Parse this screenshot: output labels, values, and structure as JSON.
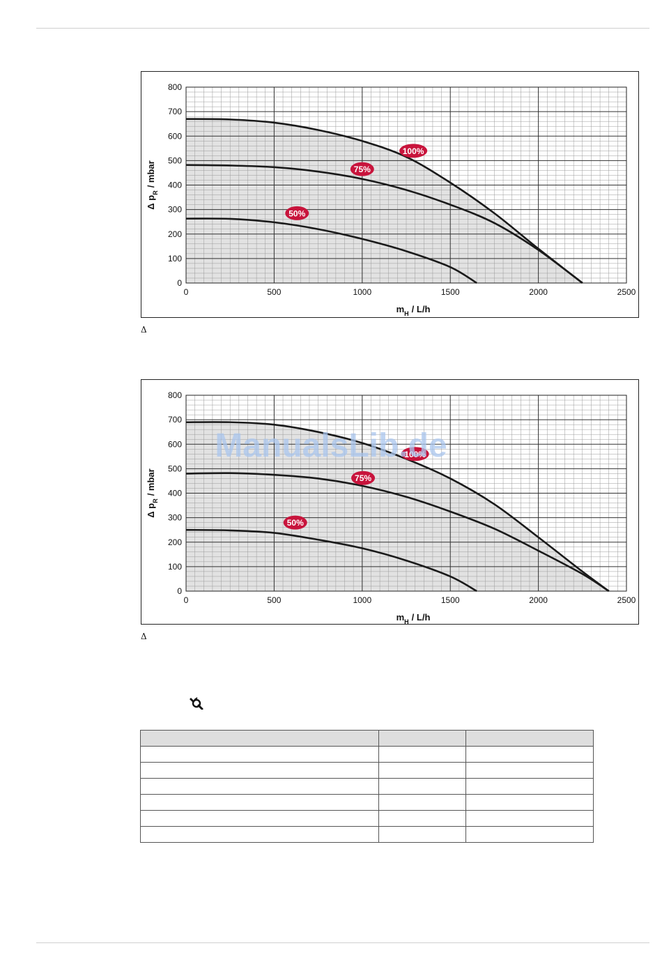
{
  "charts": [
    {
      "type": "line",
      "ylabel_main": "Δ p",
      "ylabel_sub": "R",
      "ylabel_unit": "/  mbar",
      "xlabel_main": "m",
      "xlabel_sub": "H",
      "xlabel_unit": "/  L/h",
      "xlim": [
        0,
        2500
      ],
      "ylim": [
        0,
        800
      ],
      "x_ticks": [
        0,
        500,
        1000,
        1500,
        2000,
        2500
      ],
      "y_ticks": [
        0,
        100,
        200,
        300,
        400,
        500,
        600,
        700,
        800
      ],
      "series": [
        {
          "name": "100%",
          "label_at": [
            1290,
            540
          ],
          "points": [
            [
              0,
              670
            ],
            [
              250,
              668
            ],
            [
              500,
              655
            ],
            [
              750,
              625
            ],
            [
              1000,
              580
            ],
            [
              1250,
              515
            ],
            [
              1500,
              410
            ],
            [
              1750,
              285
            ],
            [
              2000,
              140
            ],
            [
              2250,
              0
            ]
          ]
        },
        {
          "name": "75%",
          "label_at": [
            1000,
            465
          ],
          "points": [
            [
              0,
              482
            ],
            [
              250,
              480
            ],
            [
              500,
              473
            ],
            [
              750,
              455
            ],
            [
              1000,
              425
            ],
            [
              1250,
              380
            ],
            [
              1500,
              320
            ],
            [
              1750,
              245
            ],
            [
              2000,
              135
            ],
            [
              2250,
              0
            ]
          ]
        },
        {
          "name": "50%",
          "label_at": [
            630,
            285
          ],
          "points": [
            [
              0,
              263
            ],
            [
              250,
              262
            ],
            [
              500,
              248
            ],
            [
              750,
              220
            ],
            [
              1000,
              180
            ],
            [
              1250,
              130
            ],
            [
              1500,
              65
            ],
            [
              1650,
              0
            ]
          ]
        }
      ],
      "caption": "Δ"
    },
    {
      "type": "line",
      "ylabel_main": "Δ p",
      "ylabel_sub": "R",
      "ylabel_unit": "/  mbar",
      "xlabel_main": "m",
      "xlabel_sub": "H",
      "xlabel_unit": "/  L/h",
      "xlim": [
        0,
        2500
      ],
      "ylim": [
        0,
        800
      ],
      "x_ticks": [
        0,
        500,
        1000,
        1500,
        2000,
        2500
      ],
      "y_ticks": [
        0,
        100,
        200,
        300,
        400,
        500,
        600,
        700,
        800
      ],
      "series": [
        {
          "name": "100%",
          "label_at": [
            1300,
            560
          ],
          "points": [
            [
              0,
              690
            ],
            [
              250,
              690
            ],
            [
              500,
              680
            ],
            [
              750,
              650
            ],
            [
              1000,
              605
            ],
            [
              1250,
              540
            ],
            [
              1500,
              460
            ],
            [
              1750,
              355
            ],
            [
              2000,
              220
            ],
            [
              2250,
              80
            ],
            [
              2400,
              0
            ]
          ]
        },
        {
          "name": "75%",
          "label_at": [
            1005,
            462
          ],
          "points": [
            [
              0,
              480
            ],
            [
              250,
              482
            ],
            [
              500,
              475
            ],
            [
              750,
              460
            ],
            [
              1000,
              430
            ],
            [
              1250,
              385
            ],
            [
              1500,
              325
            ],
            [
              1750,
              255
            ],
            [
              2000,
              165
            ],
            [
              2250,
              70
            ],
            [
              2400,
              0
            ]
          ]
        },
        {
          "name": "50%",
          "label_at": [
            620,
            280
          ],
          "points": [
            [
              0,
              250
            ],
            [
              250,
              248
            ],
            [
              500,
              238
            ],
            [
              750,
              210
            ],
            [
              1000,
              175
            ],
            [
              1250,
              125
            ],
            [
              1500,
              60
            ],
            [
              1650,
              0
            ]
          ]
        }
      ],
      "caption": "Δ"
    }
  ],
  "watermark": "ManualsLib.de",
  "icons": {
    "tool": "wrench-icon"
  },
  "table": {
    "columns": [
      "",
      "",
      ""
    ],
    "rows": [
      [
        "",
        "",
        ""
      ],
      [
        "",
        "",
        ""
      ],
      [
        "",
        "",
        ""
      ],
      [
        "",
        "",
        ""
      ],
      [
        "",
        "",
        ""
      ],
      [
        "",
        "",
        ""
      ]
    ]
  },
  "colors": {
    "curve": "#1a1a1a",
    "badge": "#c8143c",
    "fill": "#e2e2e2"
  }
}
